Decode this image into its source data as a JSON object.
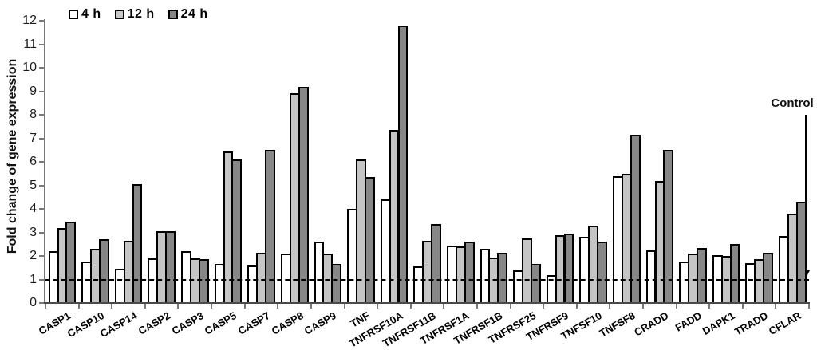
{
  "chart_data": {
    "type": "bar",
    "title": "",
    "ylabel": "Fold change of gene expression",
    "xlabel": "",
    "ylim": [
      0,
      12
    ],
    "yticks": [
      0,
      1,
      2,
      3,
      4,
      5,
      6,
      7,
      8,
      9,
      10,
      11,
      12
    ],
    "grid": false,
    "legend_position": "top-left",
    "categories": [
      "CASP1",
      "CASP10",
      "CASP14",
      "CASP2",
      "CASP3",
      "CASP5",
      "CASP7",
      "CASP8",
      "CASP9",
      "TNF",
      "TNFRSF10A",
      "TNFRSF11B",
      "TNFRSF1A",
      "TNFRSF1B",
      "TNFRSF25",
      "TNFRSF9",
      "TNFSF10",
      "TNFSF8",
      "CRADD",
      "FADD",
      "DAPK1",
      "TRADD",
      "CFLAR"
    ],
    "series": [
      {
        "name": "4 h",
        "color": "#ffffff",
        "values": [
          2.2,
          1.75,
          1.45,
          1.9,
          2.2,
          1.65,
          1.6,
          2.1,
          2.6,
          4.0,
          4.4,
          1.55,
          2.45,
          2.3,
          1.4,
          1.2,
          2.8,
          5.4,
          2.25,
          1.75,
          2.05,
          1.7,
          2.85
        ]
      },
      {
        "name": "12 h",
        "color": "#c5c5c5",
        "values": [
          3.2,
          2.3,
          2.65,
          3.05,
          1.9,
          6.45,
          2.15,
          8.9,
          2.1,
          6.1,
          7.35,
          2.65,
          2.4,
          1.95,
          2.75,
          2.9,
          3.3,
          5.5,
          5.2,
          2.1,
          2.0,
          1.85,
          3.8
        ]
      },
      {
        "name": "24 h",
        "color": "#878787",
        "values": [
          3.45,
          2.7,
          5.05,
          3.05,
          1.85,
          6.1,
          6.5,
          9.2,
          1.65,
          5.35,
          11.8,
          3.35,
          2.6,
          2.15,
          1.65,
          2.95,
          2.6,
          7.15,
          6.5,
          2.35,
          2.5,
          2.15,
          4.3
        ]
      }
    ],
    "reference_line": {
      "value": 1,
      "style": "dashed",
      "color": "#000000"
    },
    "annotation": {
      "text": "Control",
      "points_to_value": 1
    }
  }
}
